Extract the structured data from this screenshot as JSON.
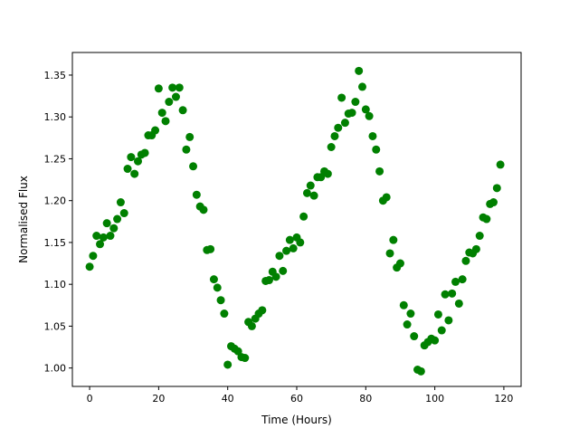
{
  "chart_data": {
    "type": "scatter",
    "xlabel": "Time (Hours)",
    "ylabel": "Normalised Flux",
    "xlim": [
      -5,
      125
    ],
    "ylim": [
      0.978,
      1.377
    ],
    "xticks": [
      0,
      20,
      40,
      60,
      80,
      100,
      120
    ],
    "yticks": [
      1.0,
      1.05,
      1.1,
      1.15,
      1.2,
      1.25,
      1.3,
      1.35
    ],
    "xtick_labels": [
      "0",
      "20",
      "40",
      "60",
      "80",
      "100",
      "120"
    ],
    "ytick_labels": [
      "1.00",
      "1.05",
      "1.10",
      "1.15",
      "1.20",
      "1.25",
      "1.30",
      "1.35"
    ],
    "grid": false,
    "marker_color": "#008000",
    "series": [
      {
        "x": [
          0,
          1,
          2,
          3,
          4,
          5,
          6,
          7,
          8,
          9,
          10,
          11,
          12,
          13,
          14,
          15,
          16,
          17,
          18,
          19,
          20,
          21,
          22,
          23,
          24,
          25,
          26,
          27,
          28,
          29,
          30,
          31,
          32,
          33,
          34,
          35,
          36,
          37,
          38,
          39,
          40,
          41,
          42,
          43,
          44,
          45,
          46,
          47,
          48,
          49,
          50,
          51,
          52,
          53,
          54,
          55,
          56,
          57,
          58,
          59,
          60,
          61,
          62,
          63,
          64,
          65,
          66,
          67,
          68,
          69,
          70,
          71,
          72,
          73,
          74,
          75,
          76,
          77,
          78,
          79,
          80,
          81,
          82,
          83,
          84,
          85,
          86,
          87,
          88,
          89,
          90,
          91,
          92,
          93,
          94,
          95,
          96,
          97,
          98,
          99,
          100,
          101,
          102,
          103,
          104,
          105,
          106,
          107,
          108,
          109,
          110,
          111,
          112,
          113,
          114,
          115,
          116,
          117,
          118,
          119
        ],
        "y": [
          1.121,
          1.134,
          1.158,
          1.148,
          1.156,
          1.173,
          1.158,
          1.167,
          1.178,
          1.198,
          1.185,
          1.238,
          1.252,
          1.232,
          1.247,
          1.255,
          1.257,
          1.278,
          1.278,
          1.284,
          1.334,
          1.305,
          1.295,
          1.318,
          1.335,
          1.324,
          1.335,
          1.308,
          1.261,
          1.276,
          1.241,
          1.207,
          1.193,
          1.189,
          1.141,
          1.142,
          1.106,
          1.096,
          1.081,
          1.065,
          1.004,
          1.026,
          1.023,
          1.02,
          1.013,
          1.012,
          1.055,
          1.05,
          1.059,
          1.065,
          1.069,
          1.104,
          1.105,
          1.115,
          1.109,
          1.134,
          1.116,
          1.14,
          1.153,
          1.143,
          1.156,
          1.15,
          1.181,
          1.209,
          1.218,
          1.206,
          1.228,
          1.228,
          1.235,
          1.232,
          1.264,
          1.277,
          1.287,
          1.323,
          1.293,
          1.304,
          1.305,
          1.318,
          1.355,
          1.336,
          1.309,
          1.301,
          1.277,
          1.261,
          1.235,
          1.2,
          1.204,
          1.137,
          1.153,
          1.12,
          1.125,
          1.075,
          1.052,
          1.065,
          1.038,
          0.998,
          0.996,
          1.027,
          1.031,
          1.035,
          1.033,
          1.064,
          1.045,
          1.088,
          1.057,
          1.089,
          1.103,
          1.077,
          1.106,
          1.128,
          1.138,
          1.137,
          1.142,
          1.158,
          1.18,
          1.178,
          1.196,
          1.198,
          1.215,
          1.243
        ]
      }
    ]
  }
}
